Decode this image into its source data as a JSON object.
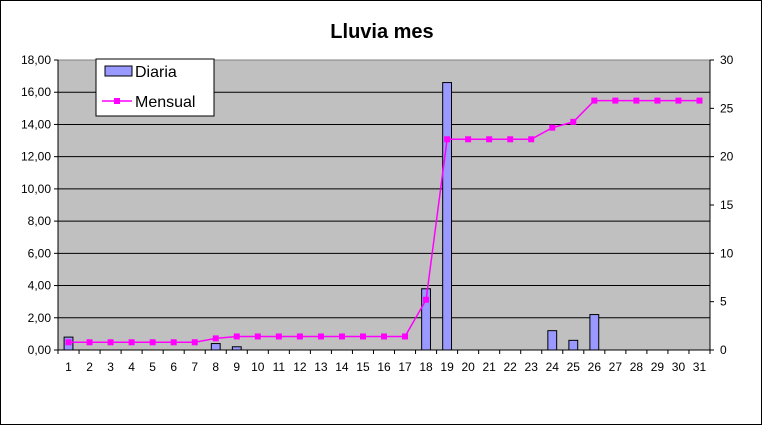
{
  "chart_data": {
    "type": "bar",
    "title": "Lluvia mes",
    "categories": [
      "1",
      "2",
      "3",
      "4",
      "5",
      "6",
      "7",
      "8",
      "9",
      "10",
      "11",
      "12",
      "13",
      "14",
      "15",
      "16",
      "17",
      "18",
      "19",
      "20",
      "21",
      "22",
      "23",
      "24",
      "25",
      "26",
      "27",
      "28",
      "29",
      "30",
      "31"
    ],
    "series": [
      {
        "name": "Diaria",
        "type": "bar",
        "axis": "left",
        "color": "#9999ff",
        "values": [
          0.8,
          0,
          0,
          0,
          0,
          0,
          0,
          0.4,
          0.2,
          0,
          0,
          0,
          0,
          0,
          0,
          0,
          0,
          3.8,
          16.6,
          0,
          0,
          0,
          0,
          1.2,
          0.6,
          2.2,
          0,
          0,
          0,
          0,
          0
        ]
      },
      {
        "name": "Mensual",
        "type": "line",
        "axis": "right",
        "color": "#ff00ff",
        "values": [
          0.8,
          0.8,
          0.8,
          0.8,
          0.8,
          0.8,
          0.8,
          1.2,
          1.4,
          1.4,
          1.4,
          1.4,
          1.4,
          1.4,
          1.4,
          1.4,
          1.4,
          5.2,
          21.8,
          21.8,
          21.8,
          21.8,
          21.8,
          23.0,
          23.6,
          25.8,
          25.8,
          25.8,
          25.8,
          25.8,
          25.8
        ]
      }
    ],
    "y_left": {
      "min": 0,
      "max": 18,
      "ticks": [
        "0,00",
        "2,00",
        "4,00",
        "6,00",
        "8,00",
        "10,00",
        "12,00",
        "14,00",
        "16,00",
        "18,00"
      ]
    },
    "y_right": {
      "min": 0,
      "max": 30,
      "ticks": [
        "0",
        "5",
        "10",
        "15",
        "20",
        "25",
        "30"
      ]
    },
    "plot_background": "#c0c0c0",
    "grid": true,
    "legend_position": "top-left"
  }
}
